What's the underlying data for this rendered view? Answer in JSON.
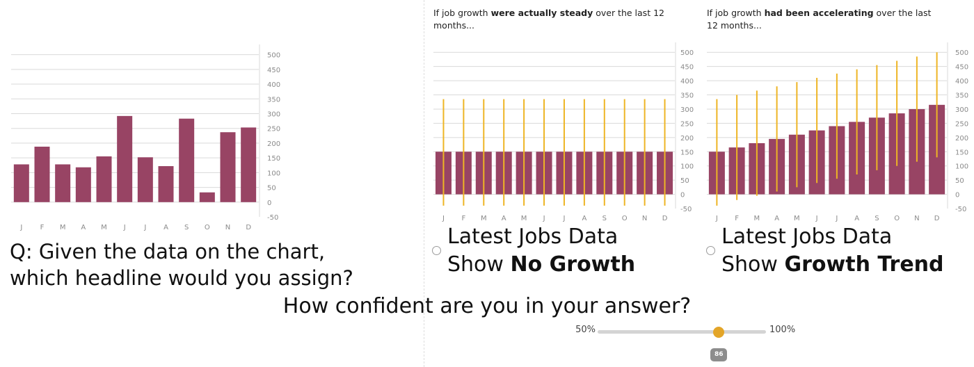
{
  "colors": {
    "bar": "#984464",
    "error_bar": "#eeb524",
    "grid": "#d9d9d9",
    "tick_text": "#8a8a8a"
  },
  "question": {
    "line1": "Q: Given the data on the chart,",
    "line2": "which headline would you assign?"
  },
  "panels": [
    {
      "caption_pre": "If job growth ",
      "caption_bold": "were actually steady",
      "caption_post": " over the last 12 months..."
    },
    {
      "caption_pre": "If job growth ",
      "caption_bold": "had been accelerating",
      "caption_post": " over the last 12 months..."
    }
  ],
  "options": [
    {
      "line1": "Latest Jobs Data",
      "line2_pre": "Show ",
      "line2_bold": "No Growth"
    },
    {
      "line1": "Latest Jobs Data",
      "line2_pre": "Show ",
      "line2_bold": "Growth Trend"
    }
  ],
  "confidence": {
    "question": "How confident are you in your answer?",
    "min_label": "50%",
    "max_label": "100%",
    "min": 50,
    "max": 100,
    "value": 86,
    "value_label": "86"
  },
  "chart_data": [
    {
      "type": "bar",
      "categories": [
        "J",
        "F",
        "M",
        "A",
        "M",
        "J",
        "J",
        "A",
        "S",
        "O",
        "N",
        "D"
      ],
      "values": [
        128,
        188,
        128,
        118,
        155,
        292,
        152,
        122,
        283,
        33,
        237,
        253
      ],
      "ylim": [
        -50,
        525
      ],
      "yticks": [
        -50,
        0,
        50,
        100,
        150,
        200,
        250,
        300,
        350,
        400,
        450,
        500
      ],
      "ytick_labels": [
        "-50",
        "0",
        "50",
        "100",
        "150",
        "200",
        "250",
        "300",
        "350",
        "400",
        "450",
        "500"
      ],
      "grid": true
    },
    {
      "type": "bar",
      "categories": [
        "J",
        "F",
        "M",
        "A",
        "M",
        "J",
        "J",
        "A",
        "S",
        "O",
        "N",
        "D"
      ],
      "values": [
        150,
        150,
        150,
        150,
        150,
        150,
        150,
        150,
        150,
        150,
        150,
        150
      ],
      "error_low": [
        -40,
        -40,
        -40,
        -40,
        -40,
        -40,
        -40,
        -40,
        -40,
        -40,
        -40,
        -40
      ],
      "error_high": [
        335,
        335,
        335,
        335,
        335,
        335,
        335,
        335,
        335,
        335,
        335,
        335
      ],
      "ylim": [
        -50,
        525
      ],
      "yticks": [
        -50,
        0,
        50,
        100,
        150,
        200,
        250,
        300,
        350,
        400,
        450,
        500
      ],
      "ytick_labels": [
        "-50",
        "0",
        "50",
        "100",
        "150",
        "200",
        "250",
        "300",
        "350",
        "400",
        "450",
        "500"
      ],
      "grid": true
    },
    {
      "type": "bar",
      "categories": [
        "J",
        "F",
        "M",
        "A",
        "M",
        "J",
        "J",
        "A",
        "S",
        "O",
        "N",
        "D"
      ],
      "values": [
        150,
        165,
        180,
        195,
        210,
        225,
        240,
        255,
        270,
        285,
        300,
        315
      ],
      "error_low": [
        -40,
        -20,
        -5,
        10,
        25,
        40,
        55,
        70,
        85,
        100,
        115,
        130
      ],
      "error_high": [
        335,
        350,
        365,
        380,
        395,
        410,
        425,
        440,
        455,
        470,
        485,
        500
      ],
      "ylim": [
        -50,
        525
      ],
      "yticks": [
        -50,
        0,
        50,
        100,
        150,
        200,
        250,
        300,
        350,
        400,
        450,
        500
      ],
      "ytick_labels": [
        "-50",
        "0",
        "50",
        "100",
        "150",
        "200",
        "250",
        "300",
        "350",
        "400",
        "450",
        "500"
      ],
      "grid": true
    }
  ]
}
